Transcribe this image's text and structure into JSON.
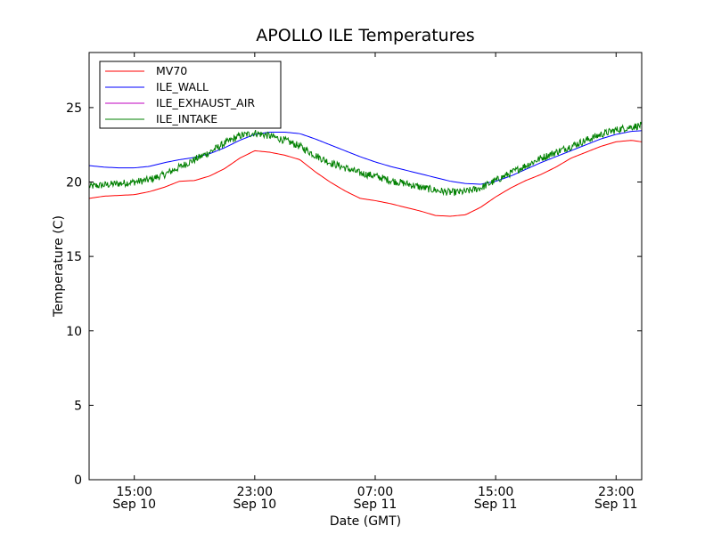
{
  "chart_data": {
    "type": "line",
    "title": "APOLLO ILE Temperatures",
    "xlabel": "Date (GMT)",
    "ylabel": "Temperature (C)",
    "ylim": [
      0,
      28.7
    ],
    "xlim_hours": [
      12,
      48.7
    ],
    "yticks": [
      0,
      5,
      10,
      15,
      20,
      25
    ],
    "xticks": [
      {
        "hour": 15,
        "line1": "15:00",
        "line2": "Sep 10"
      },
      {
        "hour": 23,
        "line1": "23:00",
        "line2": "Sep 10"
      },
      {
        "hour": 31,
        "line1": "07:00",
        "line2": "Sep 11"
      },
      {
        "hour": 39,
        "line1": "15:00",
        "line2": "Sep 11"
      },
      {
        "hour": 47,
        "line1": "23:00",
        "line2": "Sep 11"
      }
    ],
    "x_reference": "hours since Sep 10 00:00 GMT",
    "legend_position": "top-left",
    "series": [
      {
        "name": "MV70",
        "color": "#ff0000",
        "x": [
          12,
          13,
          14,
          15,
          16,
          17,
          18,
          19,
          20,
          21,
          22,
          23,
          24,
          25,
          26,
          27,
          28,
          29,
          30,
          31,
          32,
          33,
          34,
          35,
          36,
          37,
          38,
          39,
          40,
          41,
          42,
          43,
          44,
          45,
          46,
          47,
          48,
          48.7
        ],
        "y": [
          18.9,
          19.05,
          19.1,
          19.15,
          19.35,
          19.65,
          20.05,
          20.1,
          20.4,
          20.9,
          21.6,
          22.1,
          22.0,
          21.8,
          21.5,
          20.7,
          20.0,
          19.4,
          18.9,
          18.75,
          18.55,
          18.3,
          18.05,
          17.75,
          17.7,
          17.8,
          18.3,
          19.0,
          19.6,
          20.1,
          20.5,
          21.0,
          21.6,
          22.0,
          22.4,
          22.7,
          22.8,
          22.7
        ]
      },
      {
        "name": "ILE_WALL",
        "color": "#0000ff",
        "x": [
          12,
          13,
          14,
          15,
          16,
          17,
          18,
          19,
          20,
          21,
          22,
          23,
          24,
          25,
          26,
          27,
          28,
          29,
          30,
          31,
          32,
          33,
          34,
          35,
          36,
          37,
          38,
          39,
          40,
          41,
          42,
          43,
          44,
          45,
          46,
          47,
          48,
          48.7
        ],
        "y": [
          21.1,
          21.0,
          20.95,
          20.95,
          21.05,
          21.3,
          21.5,
          21.65,
          21.9,
          22.3,
          22.8,
          23.2,
          23.35,
          23.35,
          23.25,
          22.9,
          22.5,
          22.1,
          21.7,
          21.35,
          21.05,
          20.8,
          20.55,
          20.3,
          20.05,
          19.9,
          19.85,
          20.05,
          20.4,
          20.85,
          21.3,
          21.7,
          22.1,
          22.5,
          22.9,
          23.2,
          23.4,
          23.45
        ]
      },
      {
        "name": "ILE_EXHAUST_AIR",
        "color": "#bf00bf",
        "x": [],
        "y": []
      },
      {
        "name": "ILE_INTAKE",
        "color": "#008000",
        "x": [
          12,
          13,
          14,
          15,
          16,
          17,
          18,
          19,
          20,
          21,
          22,
          23,
          24,
          25,
          26,
          27,
          28,
          29,
          30,
          31,
          32,
          33,
          34,
          35,
          36,
          37,
          38,
          39,
          40,
          41,
          42,
          43,
          44,
          45,
          46,
          47,
          48,
          48.7
        ],
        "y": [
          19.7,
          19.8,
          19.9,
          20.0,
          20.15,
          20.5,
          21.0,
          21.5,
          22.0,
          22.6,
          23.1,
          23.3,
          23.1,
          22.8,
          22.4,
          21.8,
          21.3,
          20.95,
          20.6,
          20.4,
          20.1,
          19.9,
          19.65,
          19.45,
          19.3,
          19.35,
          19.6,
          20.1,
          20.6,
          21.1,
          21.6,
          22.0,
          22.4,
          22.8,
          23.2,
          23.5,
          23.7,
          23.8
        ],
        "noise_amplitude": 0.25
      }
    ]
  }
}
